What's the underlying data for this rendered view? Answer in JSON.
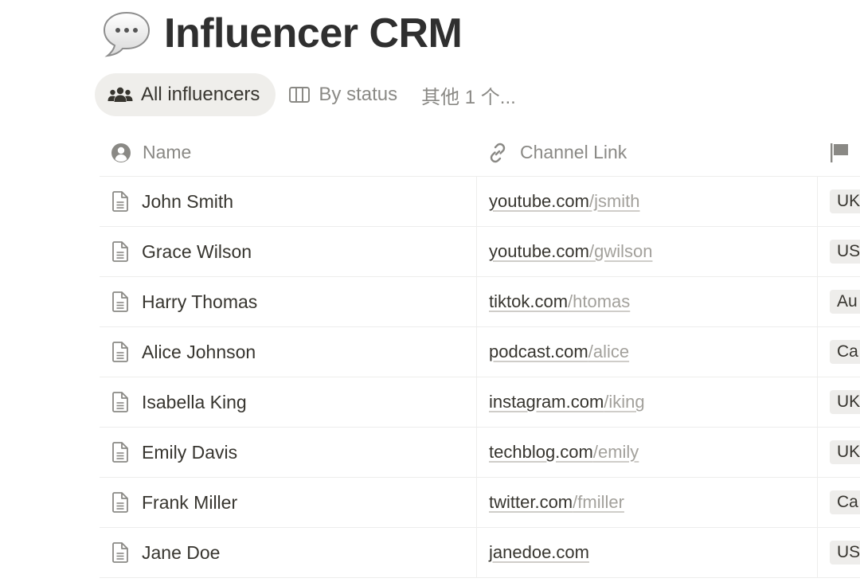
{
  "page": {
    "title": "Influencer CRM",
    "emoji": "speech-bubble-icon"
  },
  "tabs": [
    {
      "label": "All influencers",
      "icon": "people-icon",
      "active": true
    },
    {
      "label": "By status",
      "icon": "board-columns-icon",
      "active": false
    }
  ],
  "more_tabs_label": "其他 1 个...",
  "columns": [
    {
      "label": "Name",
      "icon": "person-circle-icon"
    },
    {
      "label": "Channel Link",
      "icon": "link-icon"
    },
    {
      "label": "",
      "icon": "flag-icon"
    }
  ],
  "rows": [
    {
      "name": "John Smith",
      "link_domain": "youtube.com",
      "link_path": "/jsmith",
      "country": "UK"
    },
    {
      "name": "Grace Wilson",
      "link_domain": "youtube.com",
      "link_path": "/gwilson",
      "country": "US"
    },
    {
      "name": "Harry Thomas",
      "link_domain": "tiktok.com",
      "link_path": "/htomas",
      "country": "Au"
    },
    {
      "name": "Alice Johnson",
      "link_domain": "podcast.com",
      "link_path": "/alice",
      "country": "Ca"
    },
    {
      "name": "Isabella King",
      "link_domain": "instagram.com",
      "link_path": "/iking",
      "country": "UK"
    },
    {
      "name": "Emily Davis",
      "link_domain": "techblog.com",
      "link_path": "/emily",
      "country": "UK"
    },
    {
      "name": "Frank Miller",
      "link_domain": "twitter.com",
      "link_path": "/fmiller",
      "country": "Ca"
    },
    {
      "name": "Jane Doe",
      "link_domain": "janedoe.com",
      "link_path": "",
      "country": "US"
    }
  ],
  "colors": {
    "text": "#37352f",
    "muted": "#8a8985",
    "path": "#a3a19c",
    "active_tab_bg": "#efeeeb",
    "pill_bg": "#eeedeb",
    "divider": "#ededec"
  }
}
